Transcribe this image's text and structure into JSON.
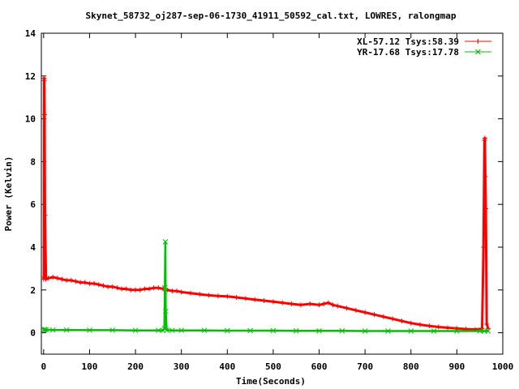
{
  "chart_data": {
    "type": "line",
    "title": "Skynet_58732_oj287-sep-06-1730_41911_50592_cal.txt, LOWRES, ralongmap",
    "xlabel": "Time(Seconds)",
    "ylabel": "Power (Kelvin)",
    "xlim": [
      -5,
      1000
    ],
    "ylim": [
      -1,
      14
    ],
    "xticks": [
      0,
      100,
      200,
      300,
      400,
      500,
      600,
      700,
      800,
      900,
      1000
    ],
    "yticks": [
      0,
      2,
      4,
      6,
      8,
      10,
      12,
      14
    ],
    "grid": false,
    "legend_position": "top-right",
    "series": [
      {
        "name": "XL-57.12 Tsys:58.39",
        "color": "#ff0000",
        "marker": "plus",
        "x": [
          0,
          0.5,
          1,
          1.5,
          2,
          3,
          5,
          10,
          20,
          30,
          40,
          50,
          60,
          70,
          80,
          90,
          100,
          110,
          120,
          130,
          140,
          150,
          160,
          170,
          180,
          190,
          200,
          210,
          220,
          230,
          240,
          250,
          260,
          265,
          270,
          280,
          290,
          300,
          320,
          340,
          360,
          380,
          400,
          420,
          440,
          460,
          480,
          500,
          520,
          540,
          560,
          580,
          600,
          610,
          620,
          630,
          640,
          660,
          680,
          700,
          720,
          740,
          760,
          780,
          800,
          820,
          840,
          860,
          880,
          900,
          920,
          940,
          955,
          958,
          960,
          961,
          962,
          963,
          965,
          968
        ],
        "y": [
          2.5,
          2.6,
          11.9,
          11.8,
          10.2,
          5.5,
          2.5,
          2.55,
          2.6,
          2.55,
          2.5,
          2.45,
          2.45,
          2.4,
          2.35,
          2.35,
          2.3,
          2.3,
          2.25,
          2.2,
          2.15,
          2.15,
          2.1,
          2.05,
          2.05,
          2.0,
          2.0,
          2.0,
          2.05,
          2.05,
          2.1,
          2.1,
          2.05,
          2.0,
          2.0,
          1.95,
          1.95,
          1.9,
          1.85,
          1.8,
          1.75,
          1.72,
          1.7,
          1.65,
          1.6,
          1.55,
          1.5,
          1.45,
          1.4,
          1.35,
          1.3,
          1.35,
          1.3,
          1.35,
          1.4,
          1.3,
          1.25,
          1.15,
          1.05,
          0.95,
          0.85,
          0.75,
          0.65,
          0.55,
          0.45,
          0.38,
          0.32,
          0.27,
          0.23,
          0.2,
          0.17,
          0.15,
          0.2,
          4.0,
          9.0,
          9.1,
          7.3,
          5.8,
          0.4,
          0.2
        ]
      },
      {
        "name": "YR-17.68 Tsys:17.78",
        "color": "#00c000",
        "marker": "cross",
        "x": [
          0,
          1,
          2,
          5,
          20,
          50,
          100,
          150,
          200,
          250,
          260,
          263,
          264,
          265,
          266,
          268,
          280,
          300,
          350,
          400,
          450,
          500,
          550,
          600,
          650,
          700,
          750,
          800,
          850,
          900,
          950,
          960,
          968
        ],
        "y": [
          0.12,
          0.15,
          0.15,
          0.14,
          0.13,
          0.13,
          0.12,
          0.12,
          0.11,
          0.11,
          0.11,
          0.2,
          2.1,
          4.25,
          1.0,
          0.12,
          0.11,
          0.11,
          0.11,
          0.1,
          0.1,
          0.1,
          0.09,
          0.09,
          0.09,
          0.08,
          0.08,
          0.08,
          0.08,
          0.08,
          0.08,
          0.08,
          0.08
        ]
      }
    ]
  }
}
